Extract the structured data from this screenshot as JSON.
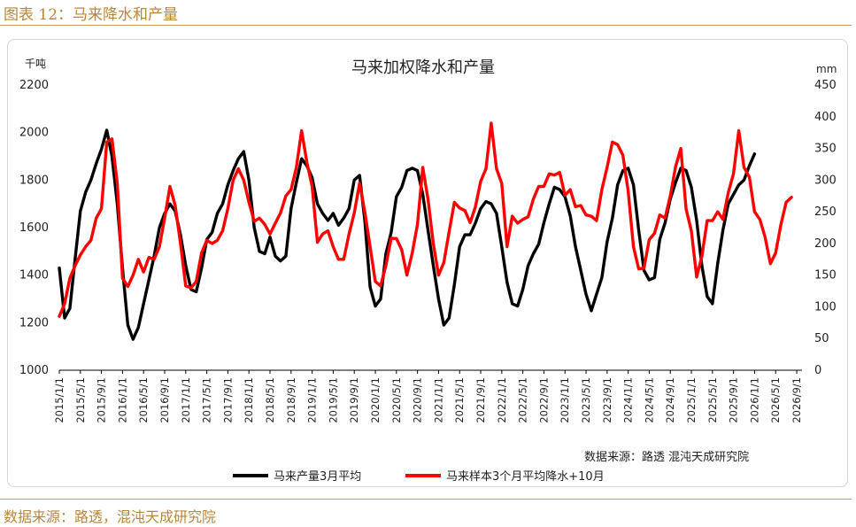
{
  "caption": "图表 12：马来降水和产量",
  "footer": "数据来源：路透，混沌天成研究院",
  "chart_data": {
    "type": "line",
    "title": "马来加权降水和产量",
    "source_note": "数据来源：路透   混沌天成研究院",
    "y_left_unit": "千吨",
    "y_right_unit": "mm",
    "y_left_lim": [
      1000,
      2200
    ],
    "y_left_ticks": [
      1000,
      1200,
      1400,
      1600,
      1800,
      2000,
      2200
    ],
    "y_right_lim": [
      0,
      450
    ],
    "y_right_ticks": [
      0,
      50,
      100,
      150,
      200,
      250,
      300,
      350,
      400,
      450
    ],
    "x_start": "2015-01",
    "x_tick_labels": [
      "2015/1/1",
      "2015/5/1",
      "2015/9/1",
      "2016/1/1",
      "2016/5/1",
      "2016/9/1",
      "2017/1/1",
      "2017/5/1",
      "2017/9/1",
      "2018/1/1",
      "2018/5/1",
      "2018/9/1",
      "2019/1/1",
      "2019/5/1",
      "2019/9/1",
      "2020/1/1",
      "2020/5/1",
      "2020/9/1",
      "2021/1/1",
      "2021/5/1",
      "2021/9/1",
      "2022/1/1",
      "2022/5/1",
      "2022/9/1",
      "2023/1/1",
      "2023/5/1",
      "2023/9/1",
      "2024/1/1",
      "2024/5/1",
      "2024/9/1",
      "2025/1/1",
      "2025/5/1",
      "2025/9/1",
      "2026/1/1",
      "2026/5/1",
      "2026/9/1"
    ],
    "legend_position": "bottom",
    "series": [
      {
        "name": "马来产量3月平均",
        "color": "#000000",
        "axis": "left",
        "values": [
          1430,
          1220,
          1260,
          1470,
          1670,
          1750,
          1800,
          1870,
          1930,
          2010,
          1900,
          1700,
          1430,
          1190,
          1130,
          1180,
          1280,
          1380,
          1480,
          1600,
          1660,
          1700,
          1670,
          1570,
          1440,
          1340,
          1330,
          1430,
          1550,
          1580,
          1660,
          1700,
          1780,
          1840,
          1890,
          1920,
          1800,
          1600,
          1500,
          1490,
          1560,
          1480,
          1460,
          1480,
          1680,
          1790,
          1890,
          1860,
          1810,
          1700,
          1660,
          1630,
          1660,
          1610,
          1640,
          1680,
          1800,
          1820,
          1630,
          1350,
          1270,
          1300,
          1490,
          1580,
          1730,
          1770,
          1840,
          1850,
          1840,
          1740,
          1590,
          1440,
          1300,
          1190,
          1220,
          1360,
          1520,
          1570,
          1570,
          1620,
          1680,
          1710,
          1700,
          1660,
          1520,
          1370,
          1280,
          1270,
          1340,
          1440,
          1490,
          1530,
          1620,
          1700,
          1770,
          1760,
          1730,
          1650,
          1520,
          1420,
          1320,
          1250,
          1320,
          1390,
          1540,
          1640,
          1780,
          1840,
          1850,
          1780,
          1590,
          1420,
          1380,
          1390,
          1550,
          1620,
          1720,
          1790,
          1850,
          1840,
          1770,
          1630,
          1440,
          1310,
          1280,
          1450,
          1590,
          1700,
          1740,
          1780,
          1800,
          1860,
          1910
        ]
      },
      {
        "name": "马来样本3个月平均降水+10月",
        "color": "#ff0000",
        "axis": "right",
        "values": [
          85,
          105,
          145,
          165,
          182,
          195,
          205,
          240,
          255,
          360,
          365,
          295,
          145,
          132,
          150,
          175,
          155,
          178,
          175,
          195,
          240,
          290,
          260,
          200,
          133,
          130,
          140,
          185,
          205,
          200,
          205,
          220,
          255,
          300,
          318,
          300,
          265,
          235,
          240,
          230,
          215,
          232,
          248,
          275,
          285,
          320,
          378,
          328,
          290,
          202,
          215,
          220,
          195,
          175,
          175,
          215,
          248,
          295,
          250,
          195,
          140,
          133,
          165,
          208,
          208,
          190,
          150,
          185,
          230,
          320,
          270,
          200,
          150,
          170,
          218,
          265,
          256,
          252,
          233,
          258,
          298,
          318,
          390,
          318,
          295,
          195,
          243,
          232,
          238,
          242,
          270,
          290,
          290,
          310,
          308,
          312,
          276,
          285,
          258,
          260,
          245,
          243,
          236,
          285,
          320,
          360,
          356,
          339,
          283,
          195,
          160,
          161,
          206,
          216,
          245,
          240,
          275,
          321,
          350,
          254,
          220,
          147,
          180,
          236,
          236,
          250,
          238,
          280,
          310,
          378,
          320,
          305,
          250,
          238,
          210,
          168,
          185,
          230,
          265,
          273
        ]
      }
    ]
  }
}
